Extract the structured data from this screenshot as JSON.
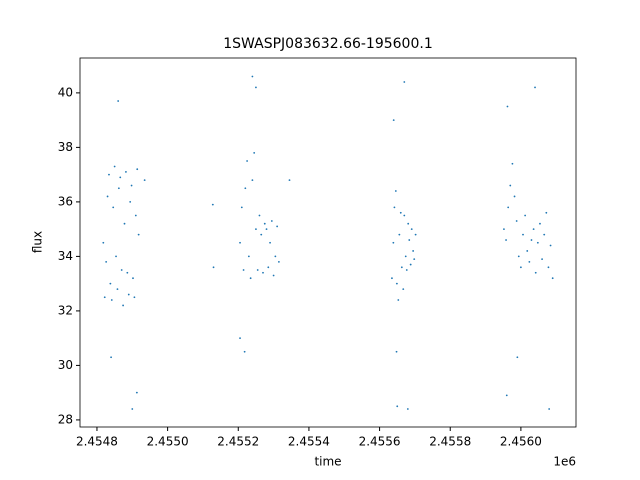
{
  "chart_data": {
    "type": "scatter",
    "title": "1SWASPJ083632.66-195600.1",
    "xlabel": "time",
    "ylabel": "flux",
    "x_offset_label": "1e6",
    "xlim": [
      2454752,
      2456156
    ],
    "ylim": [
      27.74,
      41.28
    ],
    "xticks": [
      {
        "value": 2454800,
        "label": "2.4548"
      },
      {
        "value": 2455000,
        "label": "2.4550"
      },
      {
        "value": 2455200,
        "label": "2.4552"
      },
      {
        "value": 2455400,
        "label": "2.4554"
      },
      {
        "value": 2455600,
        "label": "2.4556"
      },
      {
        "value": 2455800,
        "label": "2.4558"
      },
      {
        "value": 2456000,
        "label": "2.4560"
      }
    ],
    "yticks": [
      28,
      30,
      32,
      34,
      36,
      38,
      40
    ],
    "series": [
      {
        "color": "#1f77b4",
        "x": [
          2454818,
          2454822,
          2454826,
          2454830,
          2454834,
          2454838,
          2454842,
          2454846,
          2454850,
          2454854,
          2454858,
          2454862,
          2454866,
          2454870,
          2454874,
          2454878,
          2454882,
          2454886,
          2454890,
          2454894,
          2454898,
          2454902,
          2454906,
          2454910,
          2454914,
          2454918,
          2454935,
          2454860,
          2454900,
          2454913,
          2454840,
          2455205,
          2455210,
          2455215,
          2455220,
          2455225,
          2455230,
          2455235,
          2455240,
          2455245,
          2455250,
          2455255,
          2455260,
          2455265,
          2455270,
          2455275,
          2455280,
          2455285,
          2455290,
          2455295,
          2455300,
          2455305,
          2455310,
          2455315,
          2455240,
          2455250,
          2455205,
          2455218,
          2455128,
          2455130,
          2455345,
          2455635,
          2455639,
          2455642,
          2455646,
          2455649,
          2455653,
          2455656,
          2455660,
          2455663,
          2455667,
          2455670,
          2455674,
          2455677,
          2455681,
          2455684,
          2455688,
          2455691,
          2455695,
          2455698,
          2455702,
          2455640,
          2455650,
          2455670,
          2455680,
          2455648,
          2455952,
          2455958,
          2455964,
          2455970,
          2455976,
          2455982,
          2455988,
          2455994,
          2456000,
          2456006,
          2456012,
          2456018,
          2456024,
          2456030,
          2456036,
          2456042,
          2456048,
          2456054,
          2456060,
          2456066,
          2456072,
          2456078,
          2456084,
          2456090,
          2455962,
          2456040,
          2455960,
          2455990,
          2456080
        ],
        "y": [
          34.5,
          32.5,
          33.8,
          36.2,
          37.0,
          33.0,
          32.4,
          35.8,
          37.3,
          34.0,
          32.8,
          36.5,
          36.9,
          33.5,
          32.2,
          35.2,
          37.1,
          33.4,
          32.6,
          36.0,
          36.6,
          33.2,
          32.5,
          35.5,
          37.2,
          34.8,
          36.8,
          39.7,
          28.4,
          29.0,
          30.3,
          34.5,
          35.8,
          33.5,
          36.5,
          37.5,
          34.0,
          33.2,
          36.8,
          37.8,
          35.0,
          33.5,
          35.5,
          34.8,
          33.4,
          35.2,
          35.0,
          33.6,
          34.5,
          35.3,
          33.3,
          34.0,
          35.1,
          33.8,
          40.6,
          40.2,
          31.0,
          30.5,
          35.9,
          33.6,
          36.8,
          33.2,
          34.5,
          35.8,
          36.4,
          33.0,
          32.4,
          34.8,
          35.6,
          33.6,
          32.8,
          35.5,
          34.0,
          33.5,
          35.2,
          34.6,
          33.7,
          35.0,
          34.2,
          33.9,
          34.8,
          39.0,
          28.5,
          40.4,
          28.4,
          30.5,
          35.0,
          34.6,
          35.8,
          36.6,
          37.4,
          36.2,
          35.3,
          34.0,
          33.6,
          34.8,
          35.5,
          34.2,
          33.8,
          34.6,
          35.0,
          33.4,
          34.5,
          35.2,
          33.9,
          34.8,
          35.6,
          33.6,
          34.4,
          33.2,
          39.5,
          40.2,
          28.9,
          30.3,
          28.4
        ]
      }
    ]
  }
}
